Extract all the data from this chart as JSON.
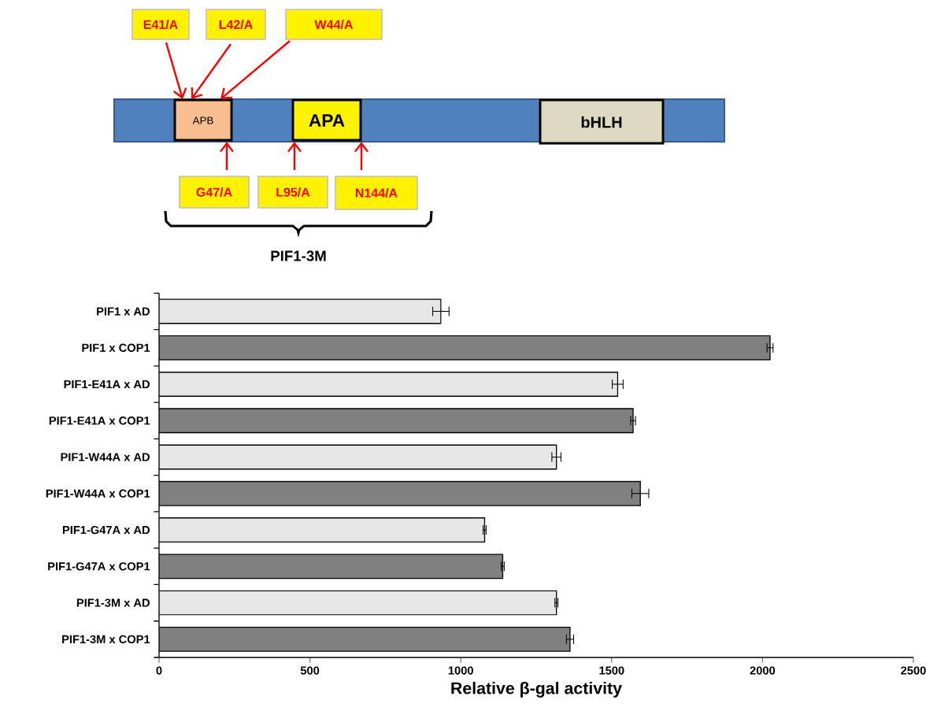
{
  "chart_data": {
    "type": "bar",
    "orientation": "horizontal",
    "xlabel": "Relative β-gal activity",
    "categories": [
      "PIF1 x AD",
      "PIF1 x COP1",
      "PIF1-E41A x AD",
      "PIF1-E41A x COP1",
      "PIF1-W44A  x AD",
      "PIF1-W44A x COP1",
      "PIF1-G47A x AD",
      "PIF1-G47A x COP1",
      "PIF1-3M x AD",
      "PIF1-3M x COP1"
    ],
    "values": [
      934,
      2025,
      1520,
      1571,
      1317,
      1595,
      1079,
      1139,
      1317,
      1362
    ],
    "errors": [
      27,
      10,
      18,
      8,
      15,
      28,
      5,
      5,
      5,
      12
    ],
    "colors": [
      "#e6e6e6",
      "#808080",
      "#e6e6e6",
      "#808080",
      "#e6e6e6",
      "#808080",
      "#e6e6e6",
      "#808080",
      "#e6e6e6",
      "#808080"
    ],
    "xlim": [
      0,
      2500
    ],
    "xticks": [
      0,
      500,
      1000,
      1500,
      2000,
      2500
    ],
    "annotations": [
      "E41/A",
      "L42/A",
      "W44/A",
      "APB",
      "APA",
      "bHLH",
      "G47/A",
      "L95/A",
      "N144/A",
      "PIF1-3M"
    ]
  }
}
